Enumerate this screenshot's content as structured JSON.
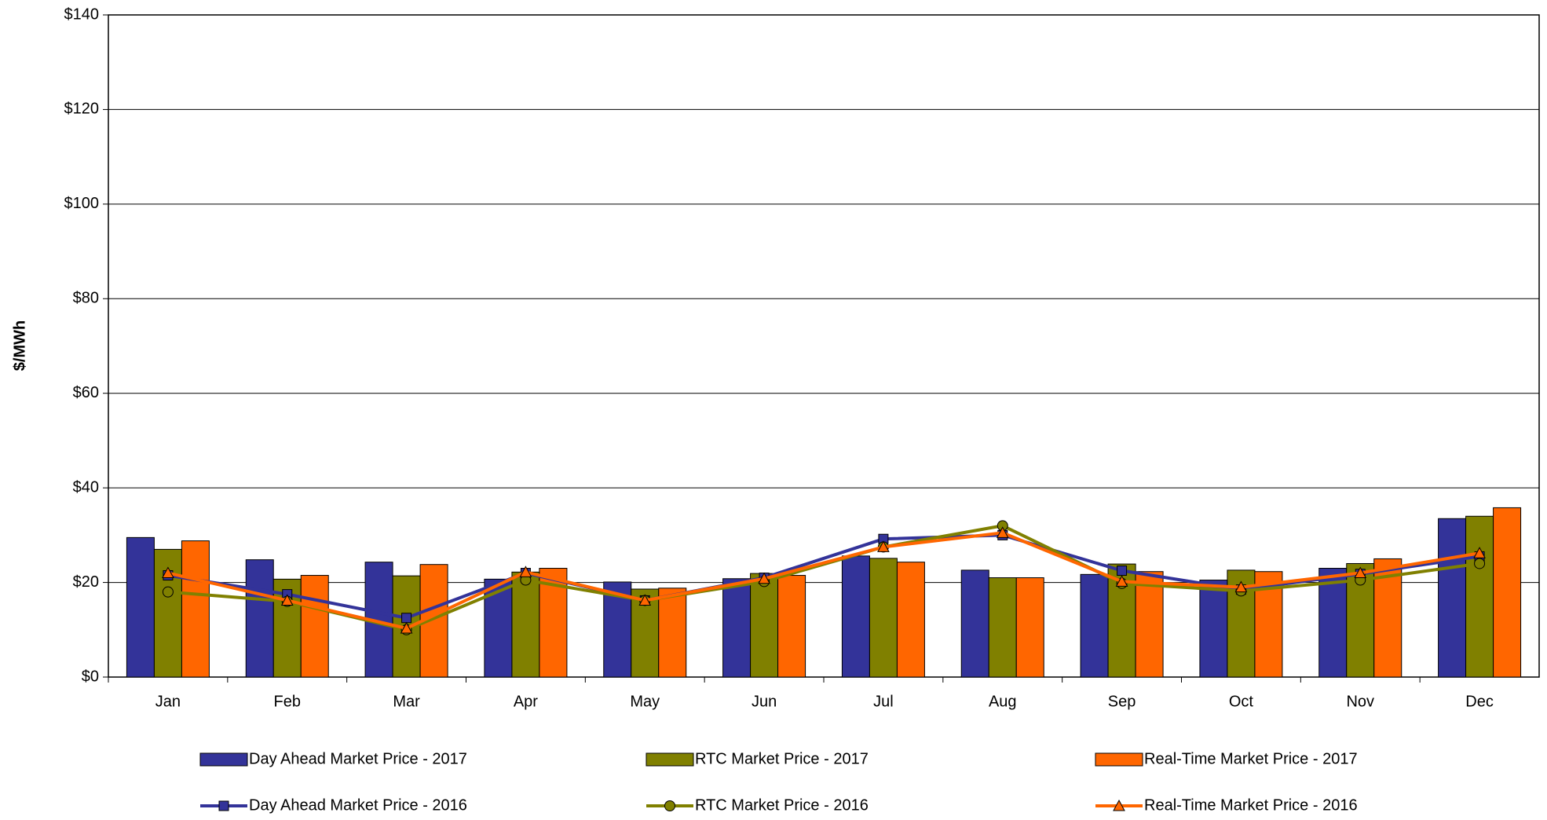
{
  "chart_data": {
    "type": "bar",
    "y_label": "$/MWh",
    "categories": [
      "Jan",
      "Feb",
      "Mar",
      "Apr",
      "May",
      "Jun",
      "Jul",
      "Aug",
      "Sep",
      "Oct",
      "Nov",
      "Dec"
    ],
    "series": [
      {
        "name": "Day Ahead Market Price - 2017",
        "type": "bar",
        "color": "#333399",
        "values": [
          29.5,
          24.8,
          24.3,
          20.7,
          20.1,
          20.8,
          25.6,
          22.6,
          21.7,
          20.5,
          23,
          33.5
        ]
      },
      {
        "name": "RTC Market Price - 2017",
        "type": "bar",
        "color": "#808000",
        "values": [
          27,
          20.7,
          21.4,
          22.2,
          18.6,
          21.9,
          25.1,
          21,
          23.9,
          22.6,
          24,
          34
        ]
      },
      {
        "name": "Real-Time Market Price - 2017",
        "type": "bar",
        "color": "#ff6600",
        "values": [
          28.8,
          21.5,
          23.8,
          23,
          18.8,
          21.5,
          24.3,
          21,
          22.3,
          22.3,
          25,
          35.8
        ]
      },
      {
        "name": "Day Ahead Market Price - 2016",
        "type": "line",
        "marker": "square",
        "color": "#333399",
        "values": [
          21.5,
          17.5,
          12.5,
          22,
          16.2,
          21,
          29.2,
          30,
          22.5,
          18.5,
          21.8,
          25.5
        ]
      },
      {
        "name": "RTC Market Price - 2016",
        "type": "line",
        "marker": "circle",
        "color": "#808000",
        "values": [
          18,
          16,
          10,
          20.5,
          16.2,
          20.2,
          27.5,
          32,
          19.8,
          18.2,
          20.5,
          24
        ]
      },
      {
        "name": "Real-Time Market Price - 2016",
        "type": "line",
        "marker": "triangle",
        "color": "#ff6600",
        "values": [
          22,
          16.2,
          10.3,
          22.2,
          16.2,
          20.8,
          27.5,
          30.5,
          20.2,
          19,
          22,
          26.2
        ]
      }
    ],
    "ylim": [
      0,
      140
    ],
    "yticks": [
      {
        "value": 0,
        "label": "$0"
      },
      {
        "value": 20,
        "label": "$20"
      },
      {
        "value": 40,
        "label": "$40"
      },
      {
        "value": 60,
        "label": "$60"
      },
      {
        "value": 80,
        "label": "$80"
      },
      {
        "value": 100,
        "label": "$100"
      },
      {
        "value": 120,
        "label": "$120"
      },
      {
        "value": 140,
        "label": "$140"
      }
    ],
    "grid": true,
    "legend": "bottom"
  }
}
